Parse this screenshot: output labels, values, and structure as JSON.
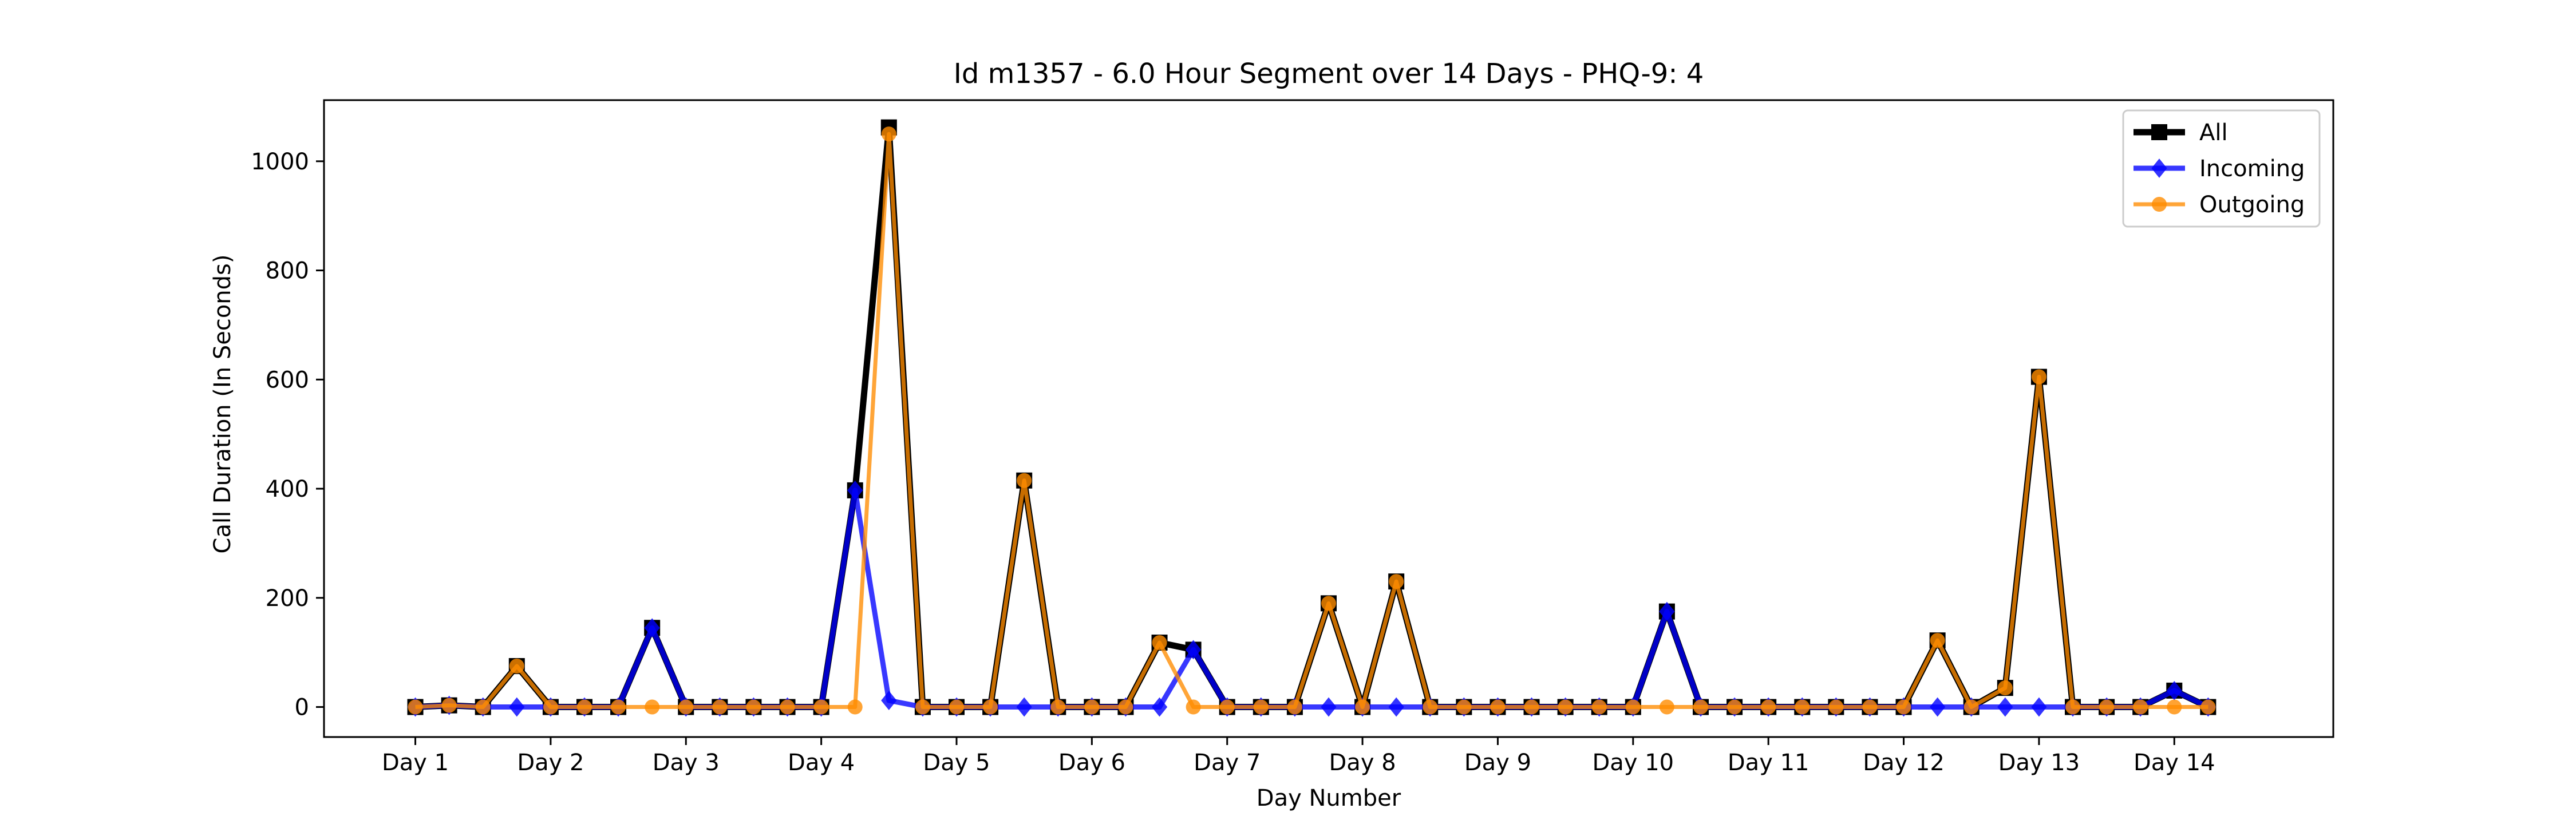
{
  "chart_data": {
    "type": "line",
    "title": "Id m1357 - 6.0 Hour Segment over 14 Days - PHQ-9: 4",
    "xlabel": "Day Number",
    "ylabel": "Call Duration (In Seconds)",
    "ylim": [
      -55,
      1112
    ],
    "yticks": [
      0,
      200,
      400,
      600,
      800,
      1000
    ],
    "xticks": [
      {
        "x": 0,
        "label": "Day 1"
      },
      {
        "x": 4,
        "label": "Day 2"
      },
      {
        "x": 8,
        "label": "Day 3"
      },
      {
        "x": 12,
        "label": "Day 4"
      },
      {
        "x": 16,
        "label": "Day 5"
      },
      {
        "x": 20,
        "label": "Day 6"
      },
      {
        "x": 24,
        "label": "Day 7"
      },
      {
        "x": 28,
        "label": "Day 8"
      },
      {
        "x": 32,
        "label": "Day 9"
      },
      {
        "x": 36,
        "label": "Day 10"
      },
      {
        "x": 40,
        "label": "Day 11"
      },
      {
        "x": 44,
        "label": "Day 12"
      },
      {
        "x": 48,
        "label": "Day 13"
      },
      {
        "x": 52,
        "label": "Day 14"
      }
    ],
    "legend_position": "top-right",
    "grid": false,
    "series": [
      {
        "name": "All",
        "color": "#000000",
        "marker": "square",
        "values": [
          0,
          3,
          0,
          75,
          0,
          0,
          0,
          145,
          0,
          0,
          0,
          0,
          0,
          397,
          1062,
          0,
          0,
          0,
          415,
          0,
          0,
          0,
          118,
          105,
          0,
          0,
          0,
          190,
          0,
          230,
          0,
          0,
          0,
          0,
          0,
          0,
          0,
          175,
          0,
          0,
          0,
          0,
          0,
          0,
          0,
          122,
          0,
          35,
          605,
          0,
          0,
          0,
          30,
          0
        ]
      },
      {
        "name": "Incoming",
        "color": "#0000ff",
        "marker": "diamond",
        "values": [
          0,
          3,
          0,
          0,
          0,
          0,
          0,
          145,
          0,
          0,
          0,
          0,
          0,
          397,
          12,
          0,
          0,
          0,
          0,
          0,
          0,
          0,
          0,
          105,
          0,
          0,
          0,
          0,
          0,
          0,
          0,
          0,
          0,
          0,
          0,
          0,
          0,
          175,
          0,
          0,
          0,
          0,
          0,
          0,
          0,
          0,
          0,
          0,
          0,
          0,
          0,
          0,
          30,
          0
        ]
      },
      {
        "name": "Outgoing",
        "color": "#ff8c00",
        "marker": "circle",
        "values": [
          0,
          3,
          0,
          75,
          0,
          0,
          0,
          0,
          0,
          0,
          0,
          0,
          0,
          0,
          1050,
          0,
          0,
          0,
          415,
          0,
          0,
          0,
          118,
          0,
          0,
          0,
          0,
          190,
          0,
          230,
          0,
          0,
          0,
          0,
          0,
          0,
          0,
          0,
          0,
          0,
          0,
          0,
          0,
          0,
          0,
          122,
          0,
          35,
          605,
          0,
          0,
          0,
          0,
          0
        ]
      }
    ]
  }
}
